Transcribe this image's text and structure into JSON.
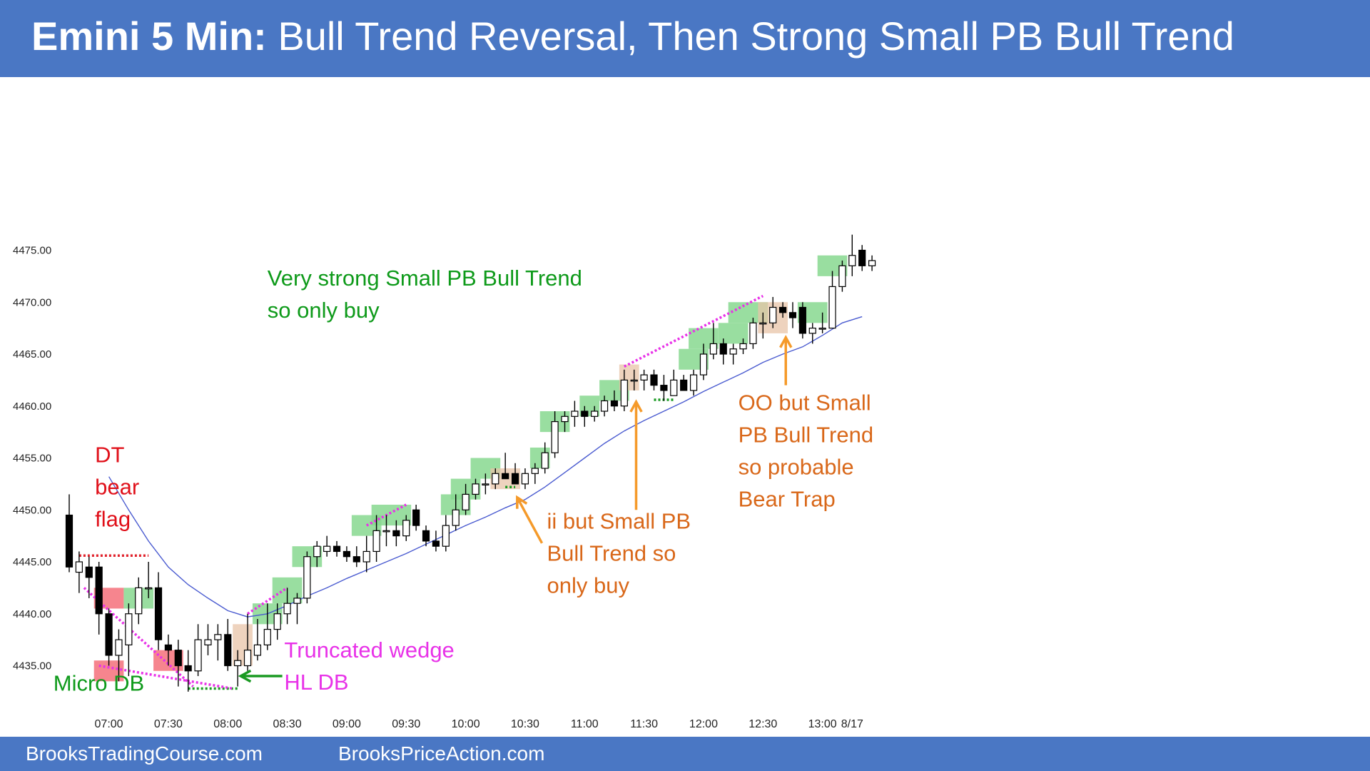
{
  "header": {
    "title_bold": "Emini 5 Min:",
    "title_rest": "Bull Trend Reversal, Then Strong Small PB Bull Trend"
  },
  "footer": {
    "left": "BrooksTradingCourse.com",
    "right": "BrooksPriceAction.com"
  },
  "colors": {
    "bull_zone": "#87d88f",
    "bear_zone": "#f4707a",
    "pause_zone": "#e8c4a8",
    "ema": "#4a5bd0",
    "magenta": "#e832e8",
    "green_text": "#0e9a1a",
    "red_text": "#e0101a",
    "orange_text": "#d9681a",
    "orange_arrow": "#f59a2a"
  },
  "chart_data": {
    "type": "candlestick",
    "ylim": [
      4432,
      4478
    ],
    "yticks": [
      "4435.00",
      "4440.00",
      "4445.00",
      "4450.00",
      "4455.00",
      "4460.00",
      "4465.00",
      "4470.00",
      "4475.00"
    ],
    "xticks": [
      {
        "label": "07:00",
        "bar": 4
      },
      {
        "label": "07:30",
        "bar": 10
      },
      {
        "label": "08:00",
        "bar": 16
      },
      {
        "label": "08:30",
        "bar": 22
      },
      {
        "label": "09:00",
        "bar": 28
      },
      {
        "label": "09:30",
        "bar": 34
      },
      {
        "label": "10:00",
        "bar": 40
      },
      {
        "label": "10:30",
        "bar": 46
      },
      {
        "label": "11:00",
        "bar": 52
      },
      {
        "label": "11:30",
        "bar": 58
      },
      {
        "label": "12:00",
        "bar": 64
      },
      {
        "label": "12:30",
        "bar": 70
      },
      {
        "label": "13:00",
        "bar": 76
      },
      {
        "label": "8/17",
        "bar": 79
      }
    ],
    "bars": [
      [
        4449.5,
        4451.5,
        4444.0,
        4444.5
      ],
      [
        4444.0,
        4446.0,
        4442.0,
        4445.0
      ],
      [
        4444.5,
        4445.5,
        4441.5,
        4443.5
      ],
      [
        4444.5,
        4445.0,
        4438.0,
        4440.0
      ],
      [
        4440.0,
        4440.5,
        4435.0,
        4436.0
      ],
      [
        4436.0,
        4438.5,
        4433.5,
        4437.5
      ],
      [
        4437.0,
        4441.0,
        4434.0,
        4440.0
      ],
      [
        4440.0,
        4443.5,
        4439.0,
        4442.5
      ],
      [
        4442.5,
        4445.0,
        4441.5,
        4442.5
      ],
      [
        4442.5,
        4444.0,
        4436.5,
        4437.5
      ],
      [
        4437.0,
        4438.0,
        4435.0,
        4436.5
      ],
      [
        4436.5,
        4437.5,
        4433.0,
        4435.0
      ],
      [
        4435.0,
        4436.5,
        4432.5,
        4434.5
      ],
      [
        4434.5,
        4439.0,
        4434.0,
        4437.5
      ],
      [
        4437.0,
        4439.0,
        4436.0,
        4437.5
      ],
      [
        4437.5,
        4439.0,
        4435.5,
        4438.0
      ],
      [
        4438.0,
        4439.5,
        4434.5,
        4435.0
      ],
      [
        4435.0,
        4436.5,
        4433.0,
        4435.5
      ],
      [
        4435.0,
        4440.0,
        4434.5,
        4436.5
      ],
      [
        4436.0,
        4439.5,
        4435.5,
        4437.0
      ],
      [
        4437.0,
        4441.0,
        4436.5,
        4438.5
      ],
      [
        4438.5,
        4441.0,
        4437.5,
        4440.0
      ],
      [
        4440.0,
        4442.5,
        4439.0,
        4441.0
      ],
      [
        4441.0,
        4442.0,
        4439.0,
        4441.5
      ],
      [
        4441.5,
        4446.0,
        4441.0,
        4445.5
      ],
      [
        4445.5,
        4447.0,
        4444.5,
        4446.5
      ],
      [
        4446.0,
        4447.5,
        4445.5,
        4446.5
      ],
      [
        4446.5,
        4447.0,
        4445.5,
        4446.0
      ],
      [
        4446.0,
        4446.5,
        4445.0,
        4445.5
      ],
      [
        4445.5,
        4446.5,
        4444.5,
        4445.0
      ],
      [
        4445.0,
        4447.5,
        4444.0,
        4446.0
      ],
      [
        4446.0,
        4449.5,
        4445.0,
        4448.0
      ],
      [
        4448.0,
        4449.5,
        4446.5,
        4448.0
      ],
      [
        4448.0,
        4449.0,
        4446.5,
        4447.5
      ],
      [
        4447.5,
        4449.5,
        4447.0,
        4449.0
      ],
      [
        4450.0,
        4450.5,
        4448.0,
        4448.5
      ],
      [
        4448.0,
        4448.5,
        4446.5,
        4447.0
      ],
      [
        4447.0,
        4448.0,
        4446.0,
        4446.5
      ],
      [
        4446.5,
        4449.5,
        4446.0,
        4448.5
      ],
      [
        4448.5,
        4451.5,
        4448.0,
        4450.0
      ],
      [
        4450.0,
        4452.5,
        4449.5,
        4451.5
      ],
      [
        4451.5,
        4453.0,
        4451.0,
        4452.5
      ],
      [
        4452.5,
        4453.5,
        4451.5,
        4452.5
      ],
      [
        4452.5,
        4454.0,
        4452.0,
        4453.5
      ],
      [
        4453.5,
        4455.5,
        4453.0,
        4453.0
      ],
      [
        4453.5,
        4454.5,
        4452.5,
        4452.5
      ],
      [
        4452.5,
        4454.0,
        4452.0,
        4453.5
      ],
      [
        4453.5,
        4454.5,
        4452.5,
        4454.0
      ],
      [
        4454.0,
        4456.5,
        4453.5,
        4455.5
      ],
      [
        4455.5,
        4459.5,
        4455.0,
        4458.5
      ],
      [
        4458.5,
        4459.5,
        4457.5,
        4459.0
      ],
      [
        4459.0,
        4460.5,
        4458.0,
        4459.5
      ],
      [
        4459.5,
        4460.0,
        4458.0,
        4459.0
      ],
      [
        4459.0,
        4460.0,
        4458.5,
        4459.5
      ],
      [
        4459.5,
        4461.0,
        4459.0,
        4460.5
      ],
      [
        4460.5,
        4461.5,
        4459.5,
        4460.0
      ],
      [
        4460.0,
        4463.5,
        4459.5,
        4462.5
      ],
      [
        4462.5,
        4463.5,
        4461.5,
        4462.5
      ],
      [
        4462.5,
        4463.5,
        4461.5,
        4463.0
      ],
      [
        4463.0,
        4463.5,
        4461.5,
        4462.0
      ],
      [
        4462.0,
        4463.0,
        4460.5,
        4461.5
      ],
      [
        4461.0,
        4463.5,
        4461.0,
        4462.5
      ],
      [
        4462.5,
        4463.0,
        4461.5,
        4461.5
      ],
      [
        4461.5,
        4463.5,
        4461.0,
        4463.0
      ],
      [
        4463.0,
        4466.0,
        4462.5,
        4465.0
      ],
      [
        4465.0,
        4468.0,
        4464.5,
        4466.0
      ],
      [
        4466.0,
        4466.5,
        4464.0,
        4465.0
      ],
      [
        4465.0,
        4466.0,
        4464.0,
        4465.5
      ],
      [
        4465.5,
        4466.5,
        4465.0,
        4466.0
      ],
      [
        4466.0,
        4468.5,
        4465.5,
        4468.0
      ],
      [
        4468.0,
        4469.0,
        4466.5,
        4468.0
      ],
      [
        4468.0,
        4470.5,
        4467.5,
        4469.5
      ],
      [
        4469.5,
        4470.0,
        4468.5,
        4469.0
      ],
      [
        4469.0,
        4470.0,
        4467.5,
        4468.5
      ],
      [
        4469.5,
        4470.0,
        4466.5,
        4467.0
      ],
      [
        4467.0,
        4468.0,
        4466.0,
        4467.5
      ],
      [
        4467.5,
        4469.0,
        4467.0,
        4467.5
      ],
      [
        4467.5,
        4473.0,
        4467.5,
        4471.5
      ],
      [
        4471.5,
        4474.0,
        4471.0,
        4473.5
      ],
      [
        4473.5,
        4476.5,
        4472.5,
        4474.5
      ],
      [
        4475.0,
        4475.5,
        4473.0,
        4473.5
      ],
      [
        4473.5,
        4474.5,
        4473.0,
        4474.0
      ]
    ],
    "ema": [
      [
        4,
        4453.2
      ],
      [
        6,
        4450.0
      ],
      [
        8,
        4447.0
      ],
      [
        10,
        4444.5
      ],
      [
        12,
        4442.8
      ],
      [
        14,
        4441.5
      ],
      [
        16,
        4440.3
      ],
      [
        18,
        4439.7
      ],
      [
        20,
        4440.0
      ],
      [
        22,
        4440.8
      ],
      [
        24,
        4441.7
      ],
      [
        26,
        4442.5
      ],
      [
        28,
        4443.4
      ],
      [
        30,
        4444.2
      ],
      [
        32,
        4445.0
      ],
      [
        34,
        4445.8
      ],
      [
        36,
        4446.7
      ],
      [
        38,
        4447.6
      ],
      [
        40,
        4448.5
      ],
      [
        42,
        4449.3
      ],
      [
        44,
        4450.2
      ],
      [
        46,
        4451.0
      ],
      [
        48,
        4452.2
      ],
      [
        50,
        4453.6
      ],
      [
        52,
        4455.0
      ],
      [
        54,
        4456.4
      ],
      [
        56,
        4457.6
      ],
      [
        58,
        4458.6
      ],
      [
        60,
        4459.5
      ],
      [
        62,
        4460.4
      ],
      [
        64,
        4461.4
      ],
      [
        66,
        4462.3
      ],
      [
        68,
        4463.2
      ],
      [
        70,
        4464.2
      ],
      [
        72,
        4465.0
      ],
      [
        74,
        4465.7
      ],
      [
        76,
        4466.8
      ],
      [
        78,
        4468.0
      ],
      [
        80,
        4468.6
      ]
    ],
    "zones": [
      {
        "kind": "bear",
        "b0": 3,
        "b1": 5,
        "top": 4442.5,
        "bottom": 4440.5
      },
      {
        "kind": "bear",
        "b0": 3,
        "b1": 5,
        "top": 4435.5,
        "bottom": 4433.5
      },
      {
        "kind": "bull",
        "b0": 6,
        "b1": 8,
        "top": 4442.5,
        "bottom": 4440.5
      },
      {
        "kind": "bear",
        "b0": 9,
        "b1": 11,
        "top": 4436.5,
        "bottom": 4434.5
      },
      {
        "kind": "pause",
        "b0": 17,
        "b1": 18,
        "top": 4439.0,
        "bottom": 4435.0
      },
      {
        "kind": "bull",
        "b0": 19,
        "b1": 21,
        "top": 4441.0,
        "bottom": 4439.0
      },
      {
        "kind": "bull",
        "b0": 21,
        "b1": 23,
        "top": 4443.5,
        "bottom": 4441.0
      },
      {
        "kind": "bull",
        "b0": 23,
        "b1": 25,
        "top": 4446.5,
        "bottom": 4444.5
      },
      {
        "kind": "bull",
        "b0": 29,
        "b1": 31,
        "top": 4449.5,
        "bottom": 4447.5
      },
      {
        "kind": "bull",
        "b0": 31,
        "b1": 34,
        "top": 4450.5,
        "bottom": 4448.5
      },
      {
        "kind": "bull",
        "b0": 38,
        "b1": 40,
        "top": 4451.5,
        "bottom": 4449.5
      },
      {
        "kind": "bull",
        "b0": 39,
        "b1": 41,
        "top": 4453.0,
        "bottom": 4451.0
      },
      {
        "kind": "bull",
        "b0": 41,
        "b1": 43,
        "top": 4455.0,
        "bottom": 4453.0
      },
      {
        "kind": "pause",
        "b0": 43,
        "b1": 45,
        "top": 4454.0,
        "bottom": 4452.0
      },
      {
        "kind": "bull",
        "b0": 47,
        "b1": 48,
        "top": 4456.0,
        "bottom": 4454.0
      },
      {
        "kind": "bull",
        "b0": 48,
        "b1": 50,
        "top": 4459.5,
        "bottom": 4457.5
      },
      {
        "kind": "bull",
        "b0": 52,
        "b1": 53,
        "top": 4461.0,
        "bottom": 4459.0
      },
      {
        "kind": "bull",
        "b0": 54,
        "b1": 56,
        "top": 4462.5,
        "bottom": 4460.5
      },
      {
        "kind": "pause",
        "b0": 56,
        "b1": 57,
        "top": 4464.0,
        "bottom": 4461.5
      },
      {
        "kind": "bull",
        "b0": 63,
        "b1": 65,
        "top": 4467.5,
        "bottom": 4465.5
      },
      {
        "kind": "bull",
        "b0": 62,
        "b1": 64,
        "top": 4465.5,
        "bottom": 4463.5
      },
      {
        "kind": "bull",
        "b0": 66,
        "b1": 68,
        "top": 4468.0,
        "bottom": 4466.0
      },
      {
        "kind": "bull",
        "b0": 67,
        "b1": 70,
        "top": 4470.0,
        "bottom": 4468.0
      },
      {
        "kind": "pause",
        "b0": 70,
        "b1": 72,
        "top": 4470.0,
        "bottom": 4467.0
      },
      {
        "kind": "bull",
        "b0": 74,
        "b1": 76,
        "top": 4470.0,
        "bottom": 4468.0
      },
      {
        "kind": "bull",
        "b0": 76,
        "b1": 78,
        "top": 4474.5,
        "bottom": 4472.5
      }
    ],
    "lines": [
      {
        "color": "red",
        "a": [
          1,
          4445.6
        ],
        "b": [
          8,
          4445.6
        ]
      },
      {
        "color": "green",
        "a": [
          12,
          4432.8
        ],
        "b": [
          17,
          4432.8
        ]
      },
      {
        "color": "green",
        "a": [
          44,
          4452.2
        ],
        "b": [
          45,
          4452.2
        ]
      },
      {
        "color": "green",
        "a": [
          59,
          4460.6
        ],
        "b": [
          61,
          4460.6
        ]
      },
      {
        "color": "magenta",
        "a": [
          1.5,
          4442.5
        ],
        "b": [
          12.5,
          4433.0
        ]
      },
      {
        "color": "magenta",
        "a": [
          3,
          4435.0
        ],
        "b": [
          16.5,
          4432.8
        ]
      },
      {
        "color": "magenta",
        "a": [
          18,
          4440.0
        ],
        "b": [
          22,
          4442.5
        ]
      },
      {
        "color": "magenta",
        "a": [
          30,
          4448.5
        ],
        "b": [
          34,
          4450.5
        ]
      },
      {
        "color": "magenta",
        "a": [
          56,
          4463.8
        ],
        "b": [
          70,
          4470.6
        ]
      }
    ],
    "arrows": [
      {
        "color": "green",
        "from": [
          21.5,
          4434.0
        ],
        "to": [
          17.3,
          4434.0
        ]
      },
      {
        "color": "orange",
        "from": [
          47.7,
          4446.8
        ],
        "to": [
          45.2,
          4451.2
        ]
      },
      {
        "color": "orange",
        "from": [
          57.2,
          4450.0
        ],
        "to": [
          57.2,
          4460.4
        ]
      },
      {
        "color": "orange",
        "from": [
          72.3,
          4462.0
        ],
        "to": [
          72.3,
          4466.6
        ]
      }
    ],
    "annotations": [
      {
        "color": "green",
        "bar": 20,
        "price": 4471.6,
        "lines": [
          "Very strong Small PB Bull Trend",
          "so only buy"
        ]
      },
      {
        "color": "red",
        "bar": 2.6,
        "price": 4454.6,
        "lines": [
          "DT",
          "bear",
          "flag"
        ]
      },
      {
        "color": "green",
        "bar": -1.6,
        "price": 4432.6,
        "lines": [
          "Micro DB"
        ]
      },
      {
        "color": "magenta",
        "bar": 21.7,
        "price": 4435.8,
        "lines": [
          "Truncated wedge",
          "HL DB"
        ]
      },
      {
        "color": "orange",
        "bar": 48.2,
        "price": 4448.2,
        "lines": [
          "ii but Small PB",
          "Bull Trend so",
          "only buy"
        ]
      },
      {
        "color": "orange",
        "bar": 67.5,
        "price": 4459.6,
        "lines": [
          "OO but Small",
          "PB Bull Trend",
          "so probable",
          "Bear Trap"
        ]
      }
    ]
  }
}
